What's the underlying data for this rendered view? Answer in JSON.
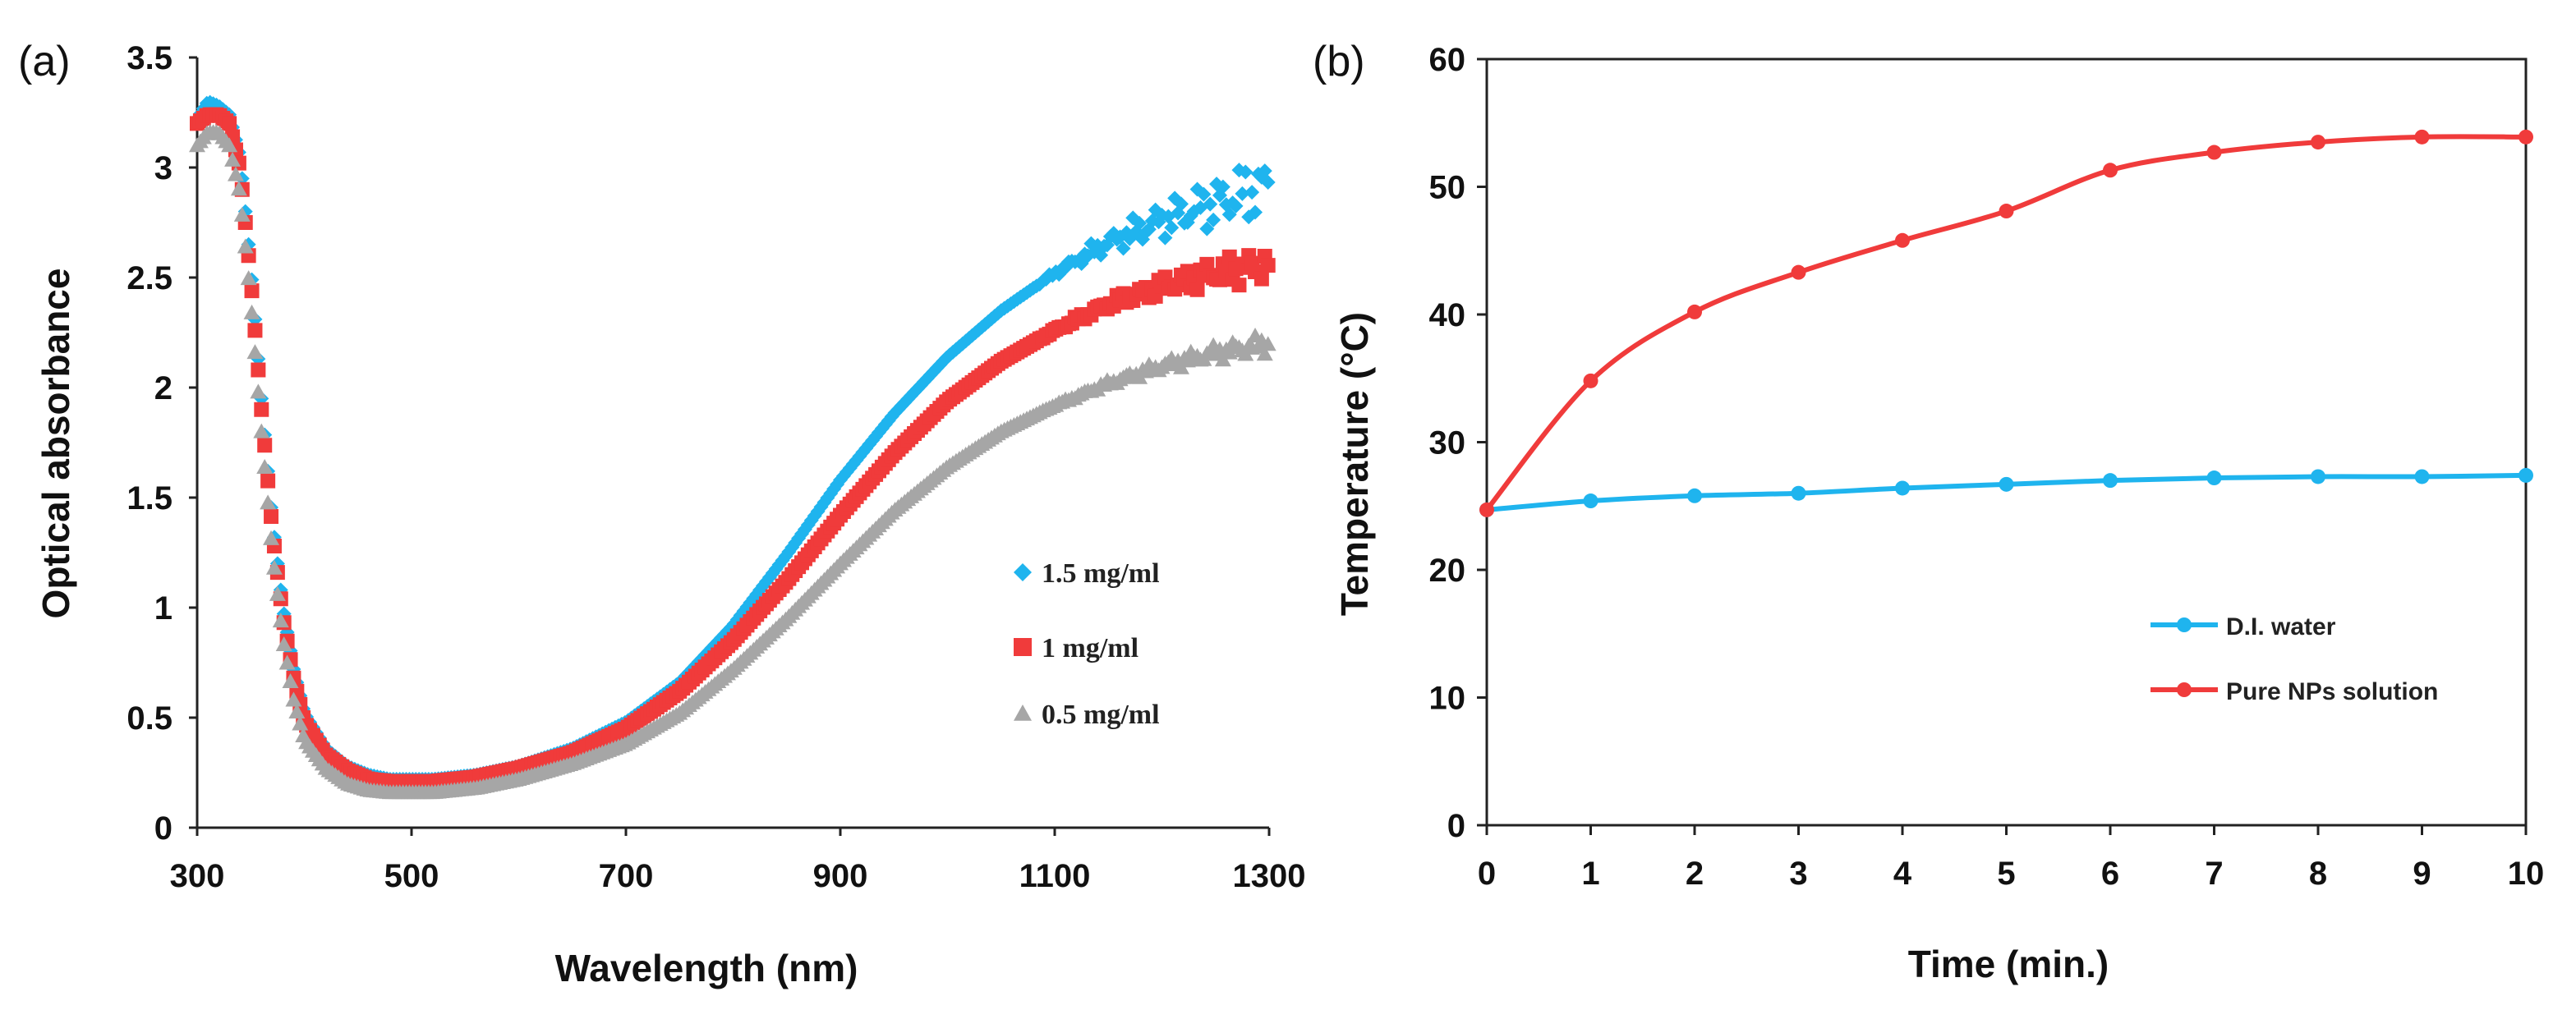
{
  "chart_data": [
    {
      "panel_label": "(a)",
      "type": "scatter",
      "xlabel": "Wavelength (nm)",
      "ylabel": "Optical absorbance",
      "xlim": [
        300,
        1300
      ],
      "ylim": [
        0,
        3.5
      ],
      "x_ticks": [
        "300",
        "500",
        "700",
        "900",
        "1100",
        "1300"
      ],
      "y_ticks": [
        "0",
        "0.5",
        "1",
        "1.5",
        "2",
        "2.5",
        "3",
        "3.5"
      ],
      "legend_position": "right",
      "series": [
        {
          "name": "1.5 mg/ml",
          "color": "#1fb4ee",
          "marker": "diamond",
          "x": [
            300,
            310,
            320,
            330,
            340,
            350,
            360,
            370,
            380,
            390,
            400,
            420,
            440,
            460,
            480,
            500,
            520,
            540,
            560,
            600,
            650,
            700,
            750,
            800,
            850,
            900,
            950,
            1000,
            1050,
            1100,
            1150,
            1200,
            1250,
            1300
          ],
          "y": [
            3.22,
            3.3,
            3.28,
            3.24,
            3.05,
            2.55,
            1.95,
            1.4,
            1.0,
            0.72,
            0.52,
            0.36,
            0.28,
            0.24,
            0.22,
            0.22,
            0.22,
            0.23,
            0.24,
            0.28,
            0.36,
            0.48,
            0.66,
            0.92,
            1.24,
            1.58,
            1.88,
            2.14,
            2.35,
            2.52,
            2.66,
            2.76,
            2.84,
            2.92
          ]
        },
        {
          "name": "1 mg/ml",
          "color": "#f03b3b",
          "marker": "square",
          "x": [
            300,
            310,
            320,
            330,
            340,
            350,
            360,
            370,
            380,
            390,
            400,
            420,
            440,
            460,
            480,
            500,
            520,
            540,
            560,
            600,
            650,
            700,
            750,
            800,
            850,
            900,
            950,
            1000,
            1050,
            1100,
            1150,
            1200,
            1250,
            1300
          ],
          "y": [
            3.2,
            3.24,
            3.24,
            3.2,
            3.0,
            2.5,
            1.9,
            1.36,
            0.96,
            0.68,
            0.48,
            0.33,
            0.26,
            0.22,
            0.21,
            0.21,
            0.21,
            0.22,
            0.23,
            0.27,
            0.34,
            0.45,
            0.62,
            0.85,
            1.12,
            1.42,
            1.7,
            1.94,
            2.12,
            2.26,
            2.38,
            2.46,
            2.52,
            2.56
          ]
        },
        {
          "name": "0.5 mg/ml",
          "color": "#a6a6a6",
          "marker": "triangle",
          "x": [
            300,
            310,
            320,
            330,
            340,
            350,
            360,
            370,
            380,
            390,
            400,
            420,
            440,
            460,
            480,
            500,
            520,
            540,
            560,
            600,
            650,
            700,
            750,
            800,
            850,
            900,
            950,
            1000,
            1050,
            1100,
            1150,
            1200,
            1250,
            1300
          ],
          "y": [
            3.1,
            3.16,
            3.16,
            3.1,
            2.88,
            2.4,
            1.8,
            1.26,
            0.86,
            0.58,
            0.4,
            0.27,
            0.2,
            0.17,
            0.16,
            0.16,
            0.16,
            0.17,
            0.18,
            0.22,
            0.29,
            0.38,
            0.52,
            0.72,
            0.95,
            1.2,
            1.44,
            1.64,
            1.8,
            1.92,
            2.02,
            2.1,
            2.16,
            2.2
          ]
        }
      ]
    },
    {
      "panel_label": "(b)",
      "type": "line",
      "xlabel": "Time (min.)",
      "ylabel": "Temperature (°C)",
      "xlim": [
        0,
        10
      ],
      "ylim": [
        0,
        60
      ],
      "x_ticks": [
        "0",
        "1",
        "2",
        "3",
        "4",
        "5",
        "6",
        "7",
        "8",
        "9",
        "10"
      ],
      "y_ticks": [
        "0",
        "10",
        "20",
        "30",
        "40",
        "50",
        "60"
      ],
      "legend_position": "bottom-right",
      "x": [
        0,
        1,
        2,
        3,
        4,
        5,
        6,
        7,
        8,
        9,
        10
      ],
      "series": [
        {
          "name": "D.I. water",
          "color": "#1fb4ee",
          "values": [
            24.7,
            25.4,
            25.8,
            26.0,
            26.4,
            26.7,
            27.0,
            27.2,
            27.3,
            27.3,
            27.4
          ]
        },
        {
          "name": "Pure NPs solution",
          "color": "#f03b3b",
          "values": [
            24.7,
            34.8,
            40.2,
            43.3,
            45.8,
            48.1,
            51.3,
            52.7,
            53.5,
            53.9,
            53.9
          ]
        }
      ]
    }
  ]
}
